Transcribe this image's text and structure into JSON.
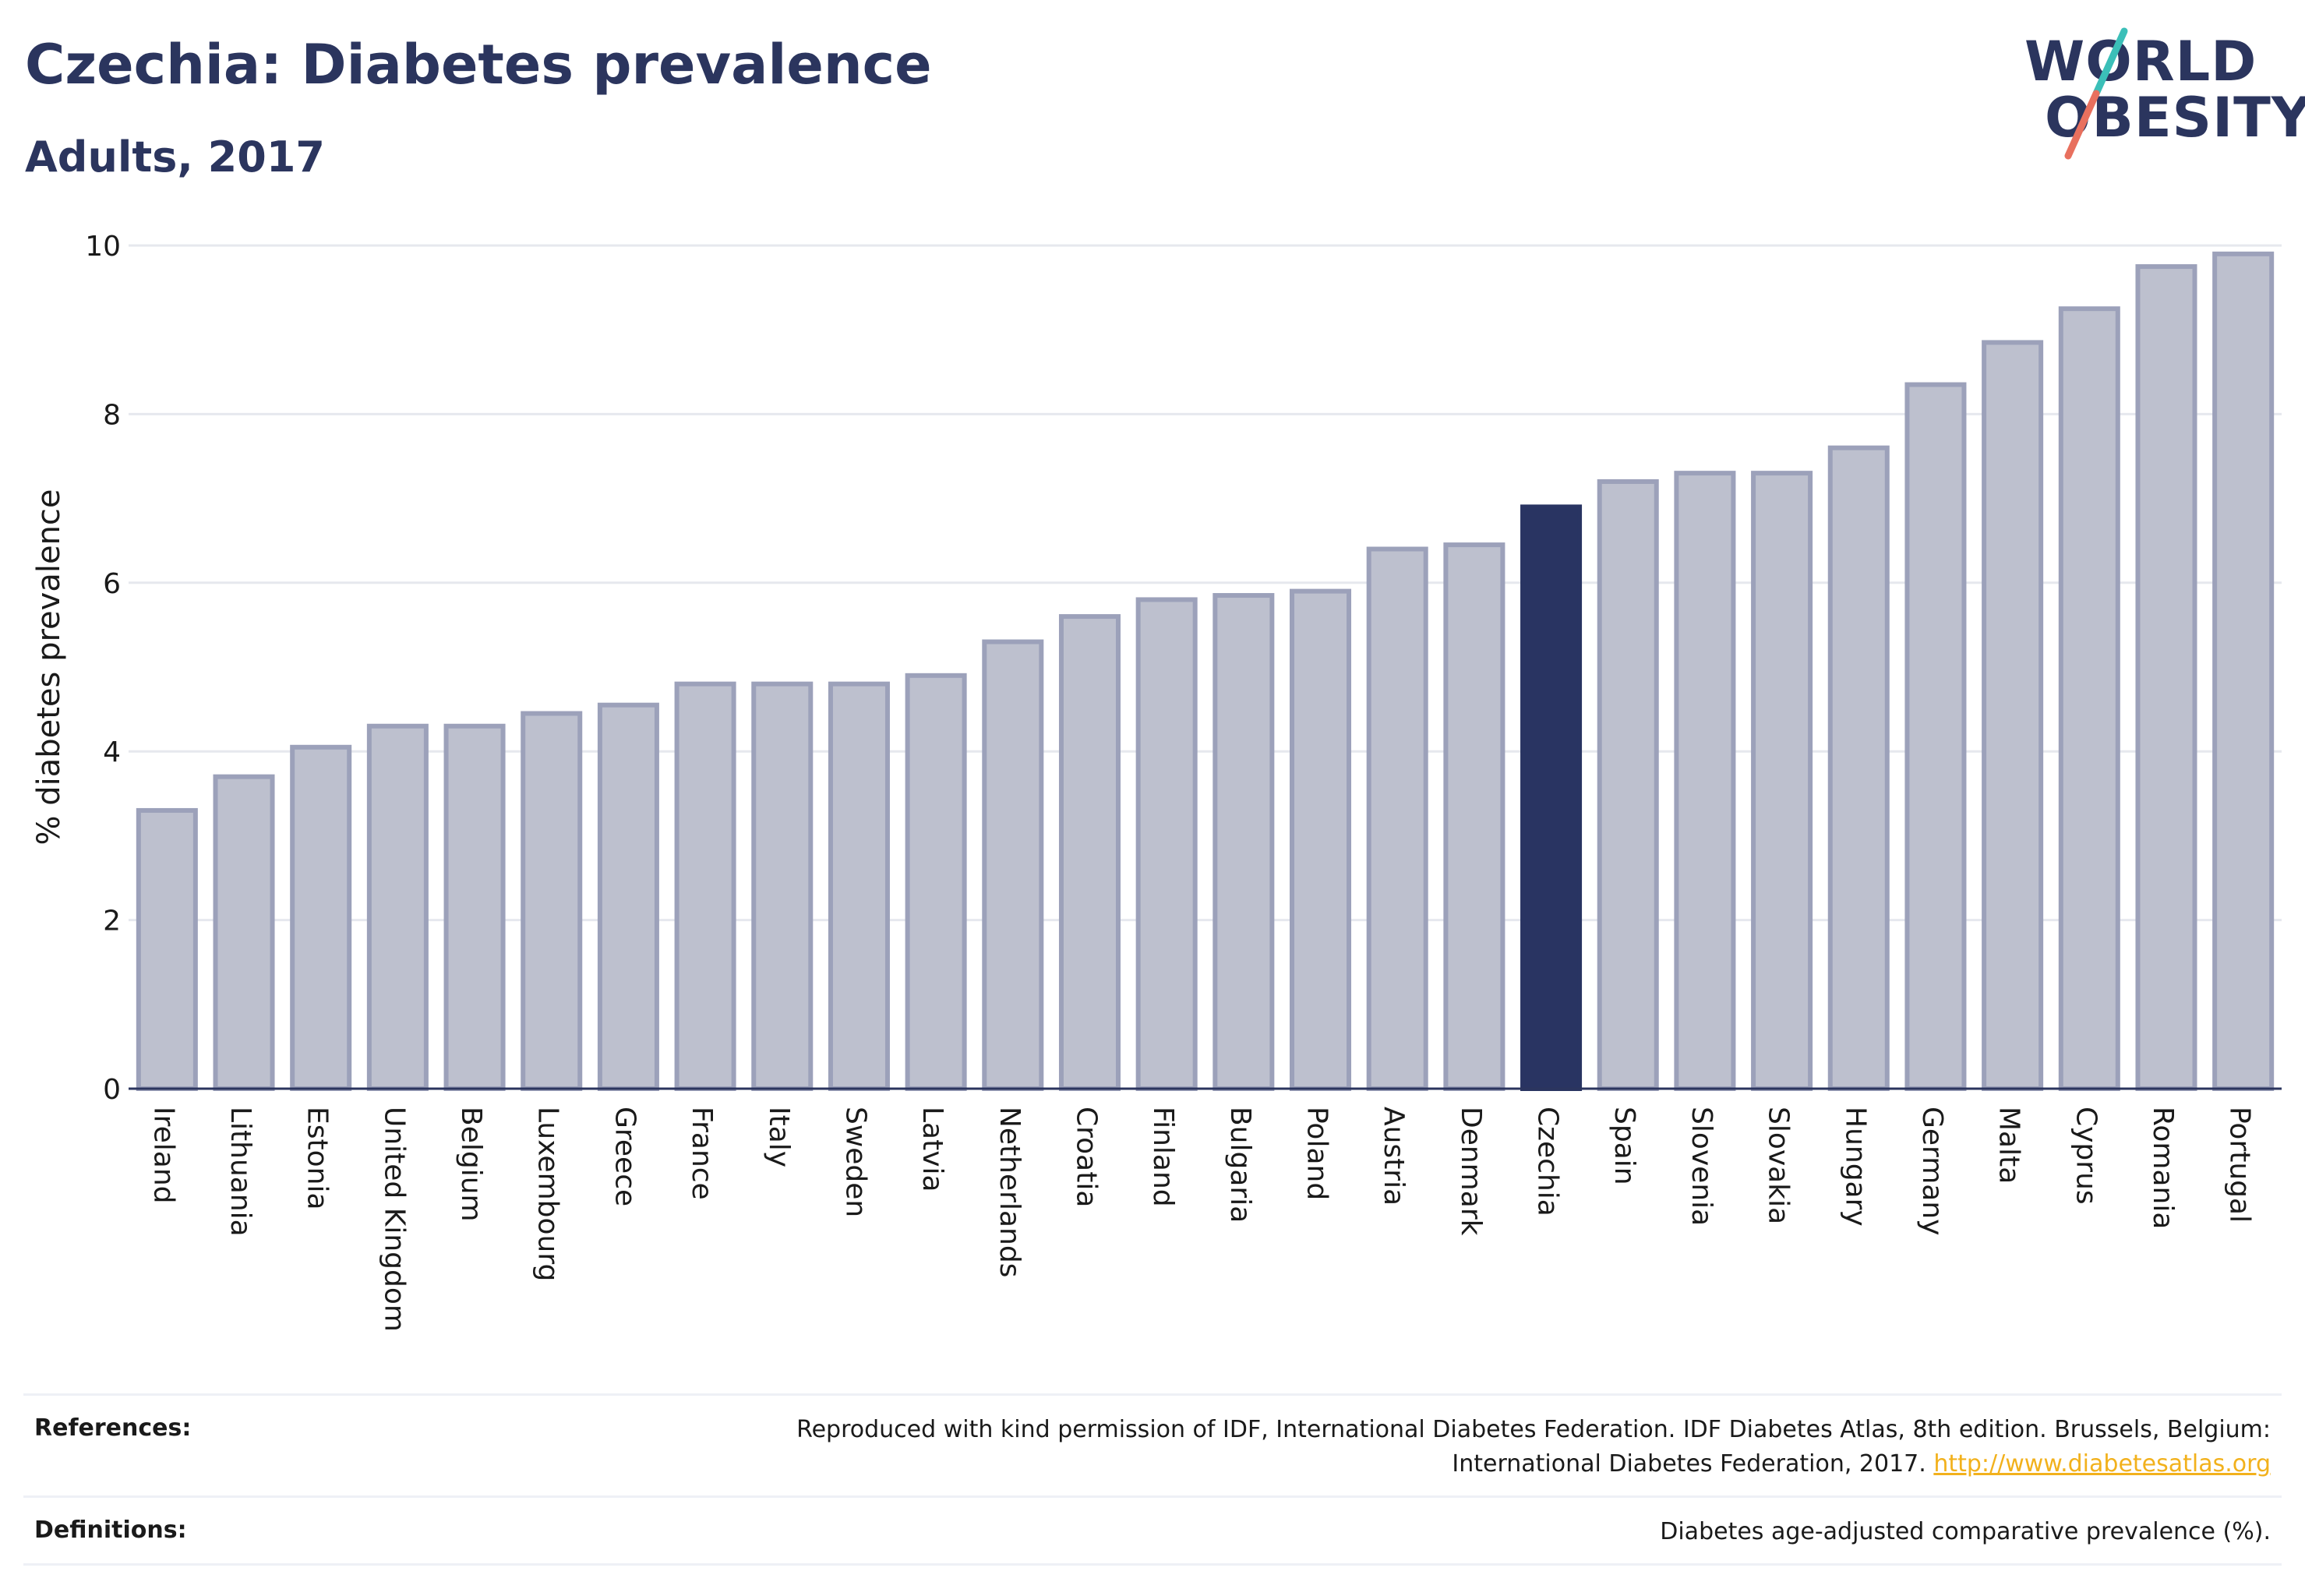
{
  "header": {
    "title": "Czechia: Diabetes prevalence",
    "subtitle": "Adults, 2017"
  },
  "logo": {
    "line1": "WORLD",
    "line2": "OBESITY",
    "text_color": "#2b355e",
    "accent_teal": "#3bbfb8",
    "accent_coral": "#e8705e"
  },
  "colors": {
    "bar_default": "#bdc0ce",
    "bar_border": "#9ca1ba",
    "bar_highlight": "#293462",
    "axis": "#2b355e",
    "grid": "#e6e8ee"
  },
  "chart_data": {
    "type": "bar",
    "ylabel": "% diabetes prevalence",
    "xlabel": "",
    "ylim": [
      0,
      10
    ],
    "yticks": [
      0,
      2,
      4,
      6,
      8,
      10
    ],
    "grid": true,
    "highlight": "Czechia",
    "categories": [
      "Ireland",
      "Lithuania",
      "Estonia",
      "United Kingdom",
      "Belgium",
      "Luxembourg",
      "Greece",
      "France",
      "Italy",
      "Sweden",
      "Latvia",
      "Netherlands",
      "Croatia",
      "Finland",
      "Bulgaria",
      "Poland",
      "Austria",
      "Denmark",
      "Czechia",
      "Spain",
      "Slovenia",
      "Slovakia",
      "Hungary",
      "Germany",
      "Malta",
      "Cyprus",
      "Romania",
      "Portugal"
    ],
    "values": [
      3.3,
      3.7,
      4.05,
      4.3,
      4.3,
      4.45,
      4.55,
      4.8,
      4.8,
      4.8,
      4.9,
      5.3,
      5.6,
      5.8,
      5.85,
      5.9,
      6.4,
      6.45,
      6.9,
      7.2,
      7.3,
      7.3,
      7.6,
      8.35,
      8.85,
      9.25,
      9.75,
      9.9
    ]
  },
  "footer": {
    "references_label": "References:",
    "references_text": "Reproduced with kind permission of IDF, International Diabetes Federation. IDF Diabetes Atlas, 8th edition. Brussels, Belgium: International Diabetes Federation, 2017.",
    "references_link": "http://www.diabetesatlas.org",
    "definitions_label": "Definitions:",
    "definitions_text": "Diabetes age-adjusted comparative prevalence (%)."
  }
}
